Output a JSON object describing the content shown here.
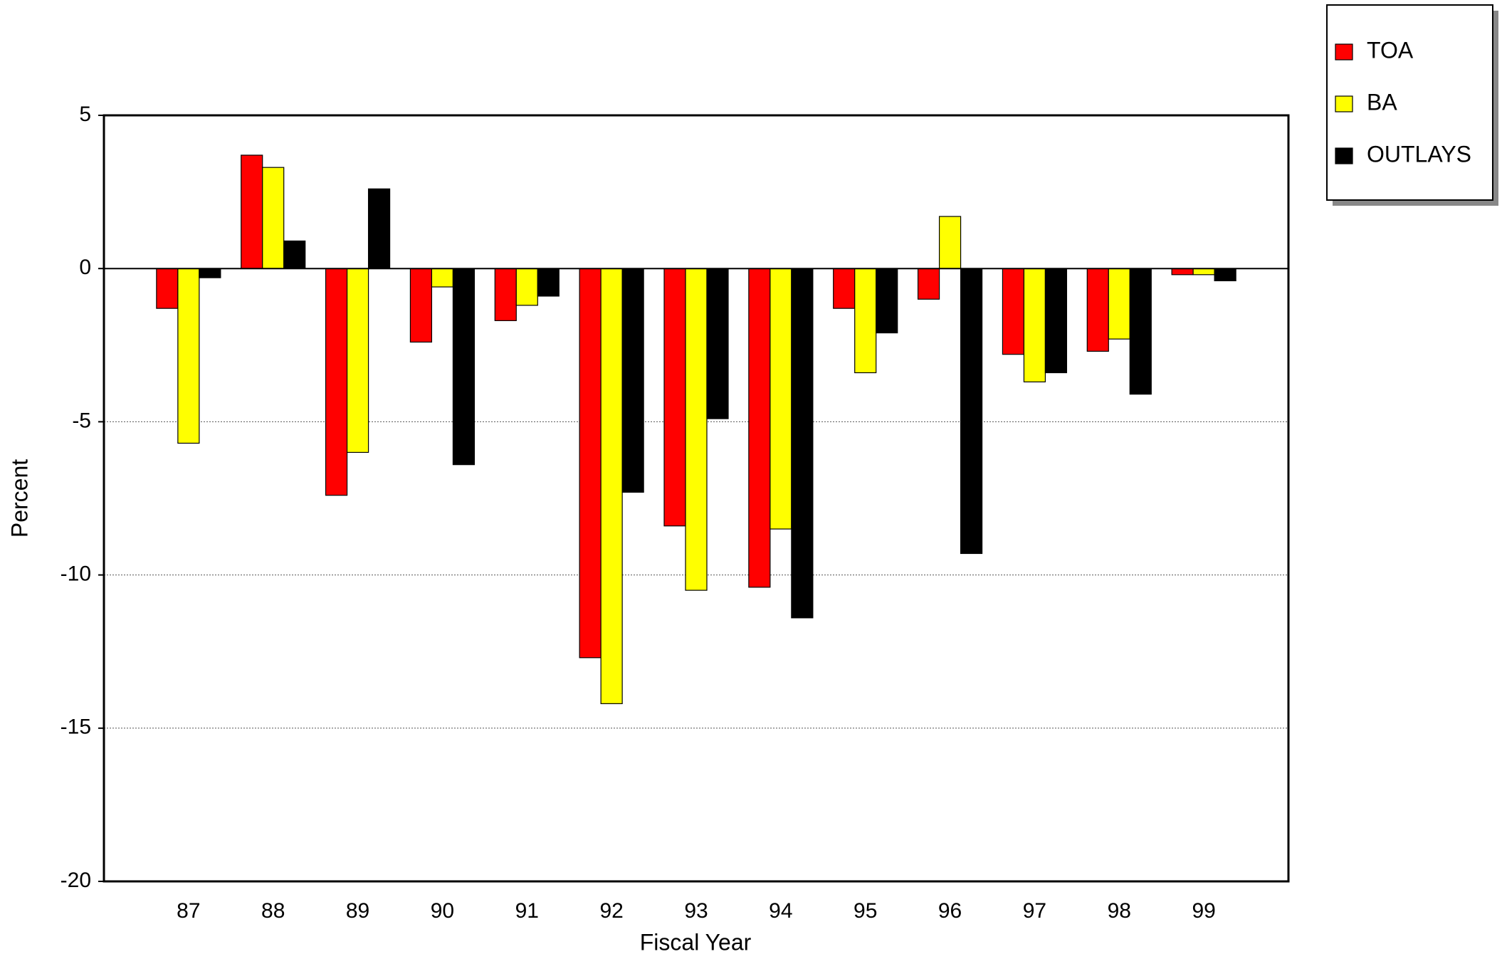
{
  "chart_data": {
    "type": "bar",
    "xlabel": "Fiscal Year",
    "ylabel": "Percent",
    "categories": [
      "87",
      "88",
      "89",
      "90",
      "91",
      "92",
      "93",
      "94",
      "95",
      "96",
      "97",
      "98",
      "99"
    ],
    "series": [
      {
        "name": "TOA",
        "color": "#ff0000",
        "values": [
          -1.3,
          3.7,
          -7.4,
          -2.4,
          -1.7,
          -12.7,
          -8.4,
          -10.4,
          -1.3,
          -1.0,
          -2.8,
          -2.7,
          -0.2
        ]
      },
      {
        "name": "BA",
        "color": "#ffff00",
        "values": [
          -5.7,
          3.3,
          -6.0,
          -0.6,
          -1.2,
          -14.2,
          -10.5,
          -8.5,
          -3.4,
          1.7,
          -3.7,
          -2.3,
          -0.2
        ]
      },
      {
        "name": "OUTLAYS",
        "color": "#000000",
        "values": [
          -0.3,
          0.9,
          2.6,
          -6.4,
          -0.9,
          -7.3,
          -4.9,
          -11.4,
          -2.1,
          -9.3,
          -3.4,
          -4.1,
          -0.4
        ]
      }
    ],
    "ylim": [
      -20,
      5
    ],
    "yticks": [
      -20,
      -15,
      -10,
      -5,
      0,
      5
    ],
    "grid": true,
    "legend": "outside upper right"
  }
}
